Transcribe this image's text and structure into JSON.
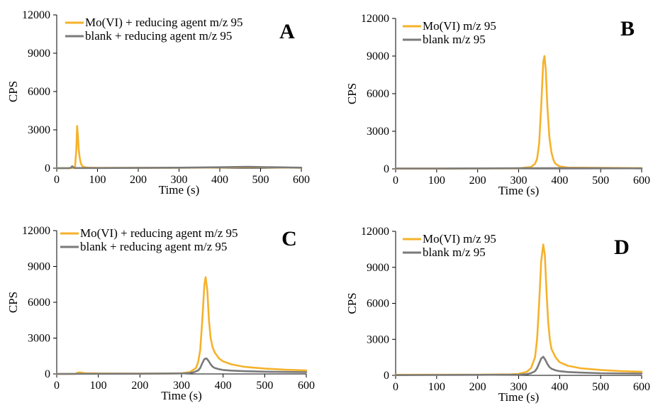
{
  "colors": {
    "sample": "#F5B22B",
    "blank": "#7A7A7A"
  },
  "chart_data": [
    {
      "type": "line",
      "panel": "A",
      "xlabel": "Time (s)",
      "ylabel": "CPS",
      "xlim": [
        0,
        600
      ],
      "ylim": [
        0,
        12000
      ],
      "xticks": [
        "0",
        "100",
        "200",
        "300",
        "400",
        "500",
        "600"
      ],
      "yticks": [
        "0",
        "3000",
        "6000",
        "9000",
        "12000"
      ],
      "legend": "top-left",
      "series": [
        {
          "name": "Mo(VI) + reducing agent m/z 95",
          "color": "sample",
          "x": [
            0,
            35,
            40,
            45,
            48,
            50,
            52,
            54,
            56,
            58,
            60,
            64,
            70,
            80,
            100,
            200,
            300,
            400,
            470,
            500,
            600
          ],
          "y": [
            0,
            0,
            20,
            150,
            1400,
            3300,
            2500,
            1500,
            900,
            550,
            300,
            120,
            60,
            40,
            30,
            20,
            30,
            50,
            90,
            70,
            30
          ]
        },
        {
          "name": "blank + reducing agent m/z 95",
          "color": "blank",
          "x": [
            0,
            30,
            35,
            38,
            40,
            42,
            45,
            50,
            100,
            200,
            300,
            400,
            470,
            500,
            600
          ],
          "y": [
            0,
            0,
            40,
            150,
            90,
            30,
            10,
            10,
            10,
            20,
            40,
            70,
            110,
            90,
            40
          ]
        }
      ]
    },
    {
      "type": "line",
      "panel": "B",
      "xlabel": "Time (s)",
      "ylabel": "CPS",
      "xlim": [
        0,
        600
      ],
      "ylim": [
        0,
        12000
      ],
      "xticks": [
        "0",
        "100",
        "200",
        "300",
        "400",
        "500",
        "600"
      ],
      "yticks": [
        "0",
        "3000",
        "6000",
        "9000",
        "12000"
      ],
      "legend": "top-left",
      "series": [
        {
          "name": "Mo(VI) m/z 95",
          "color": "sample",
          "x": [
            0,
            100,
            200,
            300,
            330,
            340,
            345,
            350,
            355,
            360,
            363,
            366,
            370,
            375,
            380,
            385,
            390,
            400,
            420,
            500,
            600
          ],
          "y": [
            20,
            20,
            30,
            40,
            150,
            400,
            800,
            2000,
            5000,
            8500,
            9000,
            8000,
            5000,
            2500,
            1300,
            700,
            400,
            200,
            100,
            80,
            60
          ]
        },
        {
          "name": "blank m/z 95",
          "color": "blank",
          "x": [
            0,
            100,
            200,
            300,
            400,
            500,
            600
          ],
          "y": [
            30,
            30,
            40,
            50,
            60,
            50,
            40
          ]
        }
      ]
    },
    {
      "type": "line",
      "panel": "C",
      "xlabel": "Time (s)",
      "ylabel": "CPS",
      "xlim": [
        0,
        600
      ],
      "ylim": [
        0,
        12000
      ],
      "xticks": [
        "0",
        "100",
        "200",
        "300",
        "400",
        "500",
        "600"
      ],
      "yticks": [
        "0",
        "3000",
        "6000",
        "9000",
        "12000"
      ],
      "legend": "top-left",
      "series": [
        {
          "name": "Mo(VI) + reducing agent m/z 95",
          "color": "sample",
          "x": [
            0,
            45,
            50,
            55,
            60,
            70,
            100,
            200,
            280,
            300,
            320,
            335,
            340,
            345,
            350,
            355,
            358,
            362,
            366,
            370,
            375,
            380,
            390,
            400,
            420,
            450,
            500,
            550,
            600
          ],
          "y": [
            0,
            0,
            100,
            130,
            100,
            60,
            40,
            30,
            40,
            60,
            150,
            500,
            1000,
            2000,
            4500,
            7500,
            8100,
            7000,
            4500,
            3000,
            2200,
            1800,
            1300,
            1050,
            800,
            600,
            450,
            350,
            300
          ]
        },
        {
          "name": "blank + reducing agent m/z 95",
          "color": "blank",
          "x": [
            0,
            100,
            200,
            300,
            320,
            330,
            340,
            345,
            350,
            355,
            360,
            365,
            370,
            375,
            380,
            390,
            400,
            420,
            450,
            500,
            600
          ],
          "y": [
            0,
            10,
            20,
            40,
            80,
            150,
            300,
            500,
            900,
            1250,
            1300,
            1100,
            800,
            600,
            500,
            400,
            330,
            280,
            230,
            190,
            150
          ]
        }
      ]
    },
    {
      "type": "line",
      "panel": "D",
      "xlabel": "Time (s)",
      "ylabel": "CPS",
      "xlim": [
        0,
        600
      ],
      "ylim": [
        0,
        12000
      ],
      "xticks": [
        "0",
        "100",
        "200",
        "300",
        "400",
        "500",
        "600"
      ],
      "yticks": [
        "0",
        "3000",
        "6000",
        "9000",
        "12000"
      ],
      "legend": "top-left",
      "series": [
        {
          "name": "Mo(VI) m/z 95",
          "color": "sample",
          "x": [
            0,
            100,
            200,
            280,
            300,
            320,
            330,
            340,
            345,
            350,
            355,
            360,
            364,
            368,
            372,
            376,
            380,
            390,
            400,
            420,
            450,
            500,
            550,
            600
          ],
          "y": [
            50,
            60,
            60,
            80,
            120,
            300,
            600,
            1500,
            3000,
            6000,
            9500,
            10900,
            10000,
            7000,
            4500,
            3000,
            2200,
            1500,
            1100,
            800,
            600,
            450,
            350,
            300
          ]
        },
        {
          "name": "blank m/z 95",
          "color": "blank",
          "x": [
            0,
            100,
            200,
            300,
            320,
            330,
            340,
            345,
            350,
            355,
            360,
            365,
            370,
            375,
            380,
            390,
            400,
            420,
            450,
            500,
            600
          ],
          "y": [
            20,
            30,
            40,
            60,
            100,
            180,
            350,
            600,
            1000,
            1400,
            1550,
            1300,
            950,
            700,
            550,
            420,
            350,
            280,
            230,
            180,
            150
          ]
        }
      ]
    }
  ]
}
